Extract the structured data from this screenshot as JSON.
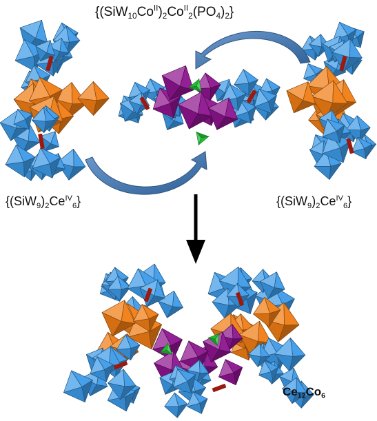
{
  "labels": {
    "top_formula": [
      {
        "t": "{(SiW",
        "s": ""
      },
      {
        "t": "10",
        "s": "sub"
      },
      {
        "t": "Co",
        "s": ""
      },
      {
        "t": "II",
        "s": "sup"
      },
      {
        "t": ")",
        "s": ""
      },
      {
        "t": "2",
        "s": "sub"
      },
      {
        "t": "Co",
        "s": ""
      },
      {
        "t": "II",
        "s": "sup"
      },
      {
        "t": "2",
        "s": "sub"
      },
      {
        "t": "(PO",
        "s": ""
      },
      {
        "t": "4",
        "s": "sub"
      },
      {
        "t": ")",
        "s": ""
      },
      {
        "t": "2",
        "s": "sub"
      },
      {
        "t": "}",
        "s": ""
      }
    ],
    "left_formula": [
      {
        "t": "{(SiW",
        "s": ""
      },
      {
        "t": "9",
        "s": "sub"
      },
      {
        "t": ")",
        "s": ""
      },
      {
        "t": "2",
        "s": "sub"
      },
      {
        "t": "Ce",
        "s": ""
      },
      {
        "t": "IV",
        "s": "sup"
      },
      {
        "t": "6",
        "s": "sub"
      },
      {
        "t": "}",
        "s": ""
      }
    ],
    "right_formula": [
      {
        "t": "{(SiW",
        "s": ""
      },
      {
        "t": "9",
        "s": "sub"
      },
      {
        "t": ")",
        "s": ""
      },
      {
        "t": "2",
        "s": "sub"
      },
      {
        "t": "Ce",
        "s": ""
      },
      {
        "t": "IV",
        "s": "sup"
      },
      {
        "t": "6",
        "s": "sub"
      },
      {
        "t": "}",
        "s": ""
      }
    ],
    "product_formula": [
      {
        "t": "Ce",
        "s": ""
      },
      {
        "t": "12",
        "s": "sub"
      },
      {
        "t": "Co",
        "s": ""
      },
      {
        "t": "6",
        "s": "sub"
      }
    ]
  },
  "colors": {
    "tungsten_polyhedra": "#3d9be8",
    "cerium_polyhedra": "#f07d14",
    "cobalt_polyhedra": "#8e148f",
    "phosphate_tetrahedra": "#1fbf32",
    "silicate_core": "#9a1a10",
    "curved_arrow": "#4a7fb8",
    "reaction_arrow": "#000000"
  }
}
